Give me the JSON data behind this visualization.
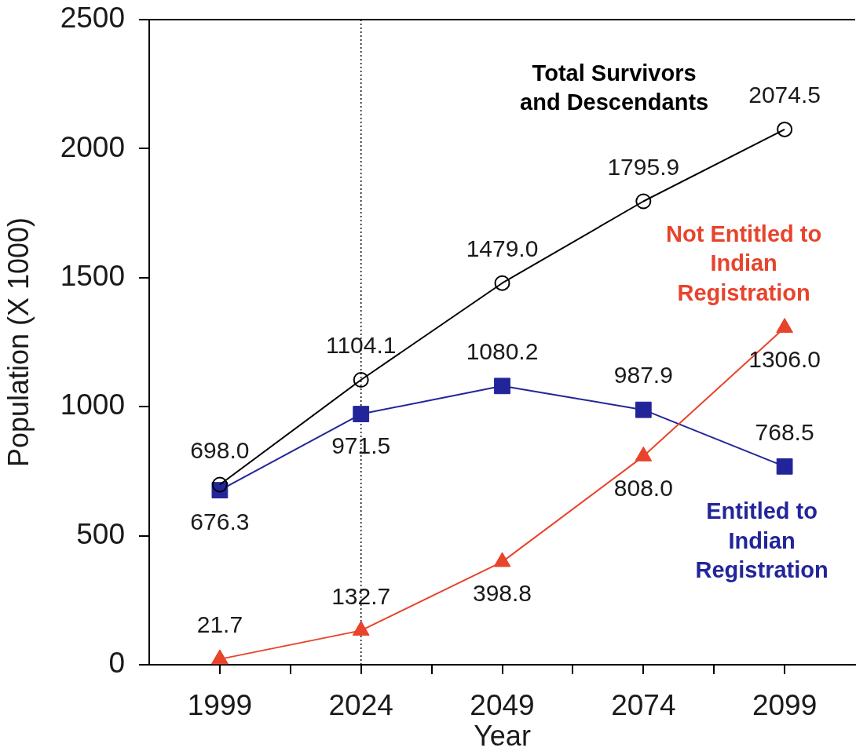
{
  "chart_data": {
    "type": "line",
    "xlabel": "Year",
    "ylabel": "Population (X 1000)",
    "x": [
      1999,
      2024,
      2049,
      2074,
      2099
    ],
    "xlim": [
      1986.5,
      2111.5
    ],
    "xticks": [
      1999,
      {
        "value": 2011.5,
        "label": null
      },
      2024,
      {
        "value": 2036.5,
        "label": null
      },
      2049,
      {
        "value": 2061.5,
        "label": null
      },
      2074,
      {
        "value": 2086.5,
        "label": null
      },
      2099
    ],
    "ylim": [
      0,
      2500
    ],
    "yticks": [
      0,
      500,
      1000,
      1500,
      2000,
      2500
    ],
    "grid": false,
    "legend": false,
    "line_style": "solid",
    "ref_lines": [
      {
        "axis": "x",
        "value": 2024,
        "color": "#000000",
        "line_style": "dotted"
      }
    ],
    "series": [
      {
        "name": "Total Survivors and Descendants",
        "color": "#000000",
        "marker": "circle",
        "values": [
          698.0,
          1104.1,
          1479.0,
          1795.9,
          2074.5
        ],
        "value_labels": [
          "698.0",
          "1104.1",
          "1479.0",
          "1795.9",
          "2074.5"
        ]
      },
      {
        "name": "Entitled to Indian Registration",
        "color": "#22259a",
        "marker": "square",
        "values": [
          676.3,
          971.5,
          1080.2,
          987.9,
          768.5
        ],
        "value_labels": [
          "676.3",
          "971.5",
          "1080.2",
          "987.9",
          "768.5"
        ]
      },
      {
        "name": "Not Entitled to Indian Registration",
        "color": "#e8432b",
        "marker": "triangle",
        "values": [
          21.7,
          132.7,
          398.8,
          808.0,
          1306.0
        ],
        "value_labels": [
          "21.7",
          "132.7",
          "398.8",
          "808.0",
          "1306.0"
        ]
      }
    ]
  }
}
